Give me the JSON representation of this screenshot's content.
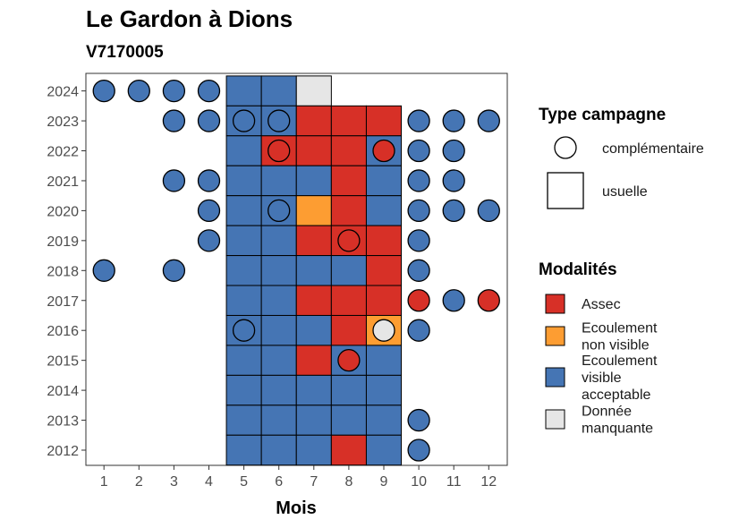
{
  "chart_data": {
    "type": "heatmap",
    "title": "Le Gardon à Dions",
    "subtitle": "V7170005",
    "xlabel": "Mois",
    "ylabel": "",
    "x_ticks": [
      "1",
      "2",
      "3",
      "4",
      "5",
      "6",
      "7",
      "8",
      "9",
      "10",
      "11",
      "12"
    ],
    "y_ticks": [
      "2024",
      "2023",
      "2022",
      "2021",
      "2020",
      "2019",
      "2018",
      "2017",
      "2016",
      "2015",
      "2014",
      "2013",
      "2012"
    ],
    "grid": false,
    "legend_position": "right",
    "colors": {
      "Assec": "#d73027",
      "Ecoulement non visible": "#fd9d32",
      "Ecoulement visible acceptable": "#4575b4",
      "Donnée manquante": "#e6e6e6"
    },
    "legend_type": {
      "title": "Type campagne",
      "items": [
        {
          "label": "complémentaire",
          "shape": "circle"
        },
        {
          "label": "usuelle",
          "shape": "square"
        }
      ]
    },
    "legend_modalites": {
      "title": "Modalités",
      "items": [
        {
          "key": "Assec",
          "lines": [
            "Assec"
          ]
        },
        {
          "key": "Ecoulement non visible",
          "lines": [
            "Ecoulement",
            "non visible"
          ]
        },
        {
          "key": "Ecoulement visible acceptable",
          "lines": [
            "Ecoulement",
            "visible",
            "acceptable"
          ]
        },
        {
          "key": "Donnée manquante",
          "lines": [
            "Donnée",
            "manquante"
          ]
        }
      ]
    },
    "usuelle": [
      {
        "year": 2024,
        "month": 5,
        "value": "Ecoulement visible acceptable"
      },
      {
        "year": 2024,
        "month": 6,
        "value": "Ecoulement visible acceptable"
      },
      {
        "year": 2024,
        "month": 7,
        "value": "Donnée manquante"
      },
      {
        "year": 2023,
        "month": 5,
        "value": "Ecoulement visible acceptable"
      },
      {
        "year": 2023,
        "month": 6,
        "value": "Ecoulement visible acceptable"
      },
      {
        "year": 2023,
        "month": 7,
        "value": "Assec"
      },
      {
        "year": 2023,
        "month": 8,
        "value": "Assec"
      },
      {
        "year": 2023,
        "month": 9,
        "value": "Assec"
      },
      {
        "year": 2022,
        "month": 5,
        "value": "Ecoulement visible acceptable"
      },
      {
        "year": 2022,
        "month": 6,
        "value": "Assec"
      },
      {
        "year": 2022,
        "month": 7,
        "value": "Assec"
      },
      {
        "year": 2022,
        "month": 8,
        "value": "Assec"
      },
      {
        "year": 2022,
        "month": 9,
        "value": "Ecoulement visible acceptable"
      },
      {
        "year": 2021,
        "month": 5,
        "value": "Ecoulement visible acceptable"
      },
      {
        "year": 2021,
        "month": 6,
        "value": "Ecoulement visible acceptable"
      },
      {
        "year": 2021,
        "month": 7,
        "value": "Ecoulement visible acceptable"
      },
      {
        "year": 2021,
        "month": 8,
        "value": "Assec"
      },
      {
        "year": 2021,
        "month": 9,
        "value": "Ecoulement visible acceptable"
      },
      {
        "year": 2020,
        "month": 5,
        "value": "Ecoulement visible acceptable"
      },
      {
        "year": 2020,
        "month": 6,
        "value": "Ecoulement visible acceptable"
      },
      {
        "year": 2020,
        "month": 7,
        "value": "Ecoulement non visible"
      },
      {
        "year": 2020,
        "month": 8,
        "value": "Assec"
      },
      {
        "year": 2020,
        "month": 9,
        "value": "Ecoulement visible acceptable"
      },
      {
        "year": 2019,
        "month": 5,
        "value": "Ecoulement visible acceptable"
      },
      {
        "year": 2019,
        "month": 6,
        "value": "Ecoulement visible acceptable"
      },
      {
        "year": 2019,
        "month": 7,
        "value": "Assec"
      },
      {
        "year": 2019,
        "month": 8,
        "value": "Assec"
      },
      {
        "year": 2019,
        "month": 9,
        "value": "Assec"
      },
      {
        "year": 2018,
        "month": 5,
        "value": "Ecoulement visible acceptable"
      },
      {
        "year": 2018,
        "month": 6,
        "value": "Ecoulement visible acceptable"
      },
      {
        "year": 2018,
        "month": 7,
        "value": "Ecoulement visible acceptable"
      },
      {
        "year": 2018,
        "month": 8,
        "value": "Ecoulement visible acceptable"
      },
      {
        "year": 2018,
        "month": 9,
        "value": "Assec"
      },
      {
        "year": 2017,
        "month": 5,
        "value": "Ecoulement visible acceptable"
      },
      {
        "year": 2017,
        "month": 6,
        "value": "Ecoulement visible acceptable"
      },
      {
        "year": 2017,
        "month": 7,
        "value": "Assec"
      },
      {
        "year": 2017,
        "month": 8,
        "value": "Assec"
      },
      {
        "year": 2017,
        "month": 9,
        "value": "Assec"
      },
      {
        "year": 2016,
        "month": 5,
        "value": "Ecoulement visible acceptable"
      },
      {
        "year": 2016,
        "month": 6,
        "value": "Ecoulement visible acceptable"
      },
      {
        "year": 2016,
        "month": 7,
        "value": "Ecoulement visible acceptable"
      },
      {
        "year": 2016,
        "month": 8,
        "value": "Assec"
      },
      {
        "year": 2016,
        "month": 9,
        "value": "Ecoulement non visible"
      },
      {
        "year": 2015,
        "month": 5,
        "value": "Ecoulement visible acceptable"
      },
      {
        "year": 2015,
        "month": 6,
        "value": "Ecoulement visible acceptable"
      },
      {
        "year": 2015,
        "month": 7,
        "value": "Assec"
      },
      {
        "year": 2015,
        "month": 8,
        "value": "Ecoulement visible acceptable"
      },
      {
        "year": 2015,
        "month": 9,
        "value": "Ecoulement visible acceptable"
      },
      {
        "year": 2014,
        "month": 5,
        "value": "Ecoulement visible acceptable"
      },
      {
        "year": 2014,
        "month": 6,
        "value": "Ecoulement visible acceptable"
      },
      {
        "year": 2014,
        "month": 7,
        "value": "Ecoulement visible acceptable"
      },
      {
        "year": 2014,
        "month": 8,
        "value": "Ecoulement visible acceptable"
      },
      {
        "year": 2014,
        "month": 9,
        "value": "Ecoulement visible acceptable"
      },
      {
        "year": 2013,
        "month": 5,
        "value": "Ecoulement visible acceptable"
      },
      {
        "year": 2013,
        "month": 6,
        "value": "Ecoulement visible acceptable"
      },
      {
        "year": 2013,
        "month": 7,
        "value": "Ecoulement visible acceptable"
      },
      {
        "year": 2013,
        "month": 8,
        "value": "Ecoulement visible acceptable"
      },
      {
        "year": 2013,
        "month": 9,
        "value": "Ecoulement visible acceptable"
      },
      {
        "year": 2012,
        "month": 5,
        "value": "Ecoulement visible acceptable"
      },
      {
        "year": 2012,
        "month": 6,
        "value": "Ecoulement visible acceptable"
      },
      {
        "year": 2012,
        "month": 7,
        "value": "Ecoulement visible acceptable"
      },
      {
        "year": 2012,
        "month": 8,
        "value": "Assec"
      },
      {
        "year": 2012,
        "month": 9,
        "value": "Ecoulement visible acceptable"
      }
    ],
    "complementaire": [
      {
        "year": 2024,
        "month": 1,
        "value": "Ecoulement visible acceptable"
      },
      {
        "year": 2024,
        "month": 2,
        "value": "Ecoulement visible acceptable"
      },
      {
        "year": 2024,
        "month": 3,
        "value": "Ecoulement visible acceptable"
      },
      {
        "year": 2024,
        "month": 4,
        "value": "Ecoulement visible acceptable"
      },
      {
        "year": 2023,
        "month": 3,
        "value": "Ecoulement visible acceptable"
      },
      {
        "year": 2023,
        "month": 4,
        "value": "Ecoulement visible acceptable"
      },
      {
        "year": 2023,
        "month": 5,
        "value": "Ecoulement visible acceptable"
      },
      {
        "year": 2023,
        "month": 6,
        "value": "Ecoulement visible acceptable"
      },
      {
        "year": 2023,
        "month": 10,
        "value": "Ecoulement visible acceptable"
      },
      {
        "year": 2023,
        "month": 11,
        "value": "Ecoulement visible acceptable"
      },
      {
        "year": 2023,
        "month": 12,
        "value": "Ecoulement visible acceptable"
      },
      {
        "year": 2022,
        "month": 6,
        "value": "Assec"
      },
      {
        "year": 2022,
        "month": 9,
        "value": "Assec"
      },
      {
        "year": 2022,
        "month": 10,
        "value": "Ecoulement visible acceptable"
      },
      {
        "year": 2022,
        "month": 11,
        "value": "Ecoulement visible acceptable"
      },
      {
        "year": 2021,
        "month": 3,
        "value": "Ecoulement visible acceptable"
      },
      {
        "year": 2021,
        "month": 4,
        "value": "Ecoulement visible acceptable"
      },
      {
        "year": 2021,
        "month": 10,
        "value": "Ecoulement visible acceptable"
      },
      {
        "year": 2021,
        "month": 11,
        "value": "Ecoulement visible acceptable"
      },
      {
        "year": 2020,
        "month": 4,
        "value": "Ecoulement visible acceptable"
      },
      {
        "year": 2020,
        "month": 6,
        "value": "Ecoulement visible acceptable"
      },
      {
        "year": 2020,
        "month": 10,
        "value": "Ecoulement visible acceptable"
      },
      {
        "year": 2020,
        "month": 11,
        "value": "Ecoulement visible acceptable"
      },
      {
        "year": 2020,
        "month": 12,
        "value": "Ecoulement visible acceptable"
      },
      {
        "year": 2019,
        "month": 4,
        "value": "Ecoulement visible acceptable"
      },
      {
        "year": 2019,
        "month": 8,
        "value": "Assec"
      },
      {
        "year": 2019,
        "month": 10,
        "value": "Ecoulement visible acceptable"
      },
      {
        "year": 2018,
        "month": 1,
        "value": "Ecoulement visible acceptable"
      },
      {
        "year": 2018,
        "month": 3,
        "value": "Ecoulement visible acceptable"
      },
      {
        "year": 2018,
        "month": 10,
        "value": "Ecoulement visible acceptable"
      },
      {
        "year": 2017,
        "month": 10,
        "value": "Assec"
      },
      {
        "year": 2017,
        "month": 11,
        "value": "Ecoulement visible acceptable"
      },
      {
        "year": 2017,
        "month": 12,
        "value": "Assec"
      },
      {
        "year": 2016,
        "month": 5,
        "value": "Ecoulement visible acceptable"
      },
      {
        "year": 2016,
        "month": 9,
        "value": "Donnée manquante"
      },
      {
        "year": 2016,
        "month": 10,
        "value": "Ecoulement visible acceptable"
      },
      {
        "year": 2015,
        "month": 8,
        "value": "Assec"
      },
      {
        "year": 2013,
        "month": 10,
        "value": "Ecoulement visible acceptable"
      },
      {
        "year": 2012,
        "month": 10,
        "value": "Ecoulement visible acceptable"
      }
    ]
  }
}
